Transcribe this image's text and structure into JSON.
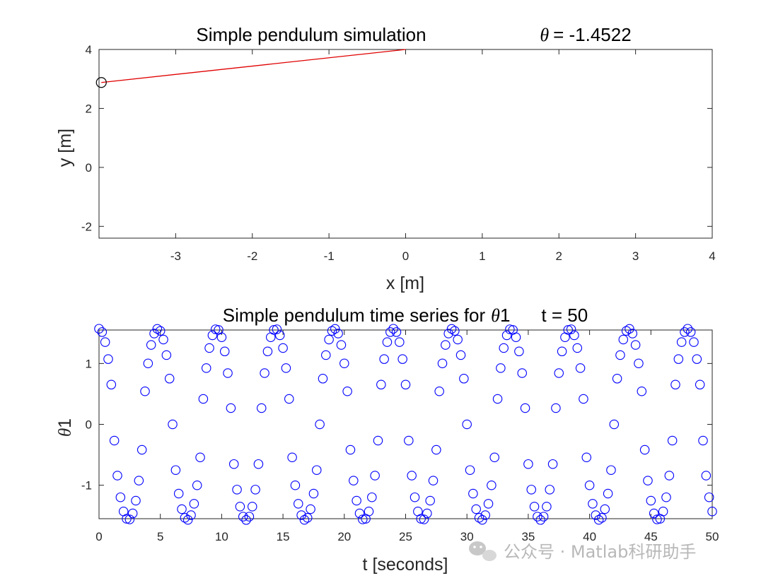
{
  "chart_data": [
    {
      "type": "line",
      "title": "Simple pendulum simulation",
      "angle_symbol": "θ",
      "angle_readout": "= -1.4522",
      "xlabel": "x [m]",
      "ylabel": "y [m]",
      "xlim": [
        -4,
        4
      ],
      "ylim": [
        -2.4,
        4
      ],
      "xticks": [
        "-3",
        "-2",
        "-1",
        "0",
        "1",
        "2",
        "3",
        "4"
      ],
      "xtick_values": [
        -3,
        -2,
        -1,
        0,
        1,
        2,
        3,
        4
      ],
      "yticks": [
        "-2",
        "0",
        "2",
        "4"
      ],
      "ytick_values": [
        -2,
        0,
        2,
        4
      ],
      "pivot": [
        0,
        4
      ],
      "bob": [
        -3.97,
        2.88
      ],
      "rod_color": "#e00000",
      "bob_color": "#000000"
    },
    {
      "type": "scatter",
      "title_prefix": "Simple pendulum time series for",
      "series_symbol": "θ",
      "series_index": "1",
      "time_readout": "t = 50",
      "xlabel": "t [seconds]",
      "ylabel_symbol": "θ",
      "ylabel_index": "1",
      "xlim": [
        0,
        50
      ],
      "ylim": [
        -1.55,
        1.55
      ],
      "xticks": [
        "0",
        "5",
        "10",
        "15",
        "20",
        "25",
        "30",
        "35",
        "40",
        "45",
        "50"
      ],
      "xtick_values": [
        0,
        5,
        10,
        15,
        20,
        25,
        30,
        35,
        40,
        45,
        50
      ],
      "yticks": [
        "-1",
        "0",
        "1"
      ],
      "ytick_values": [
        -1,
        0,
        1
      ],
      "marker": "circle",
      "marker_color": "#0000ff",
      "series": [
        {
          "name": "θ1",
          "initial_angle": 1.5708,
          "period": 4.8,
          "t_start": 0,
          "t_end": 50,
          "dt": 0.25,
          "model": "large-amplitude pendulum oscillating between +1.571 and -1.571 rad"
        }
      ]
    }
  ],
  "watermark": {
    "text": "公众号 · Matlab科研助手",
    "icon": "wechat-icon"
  }
}
